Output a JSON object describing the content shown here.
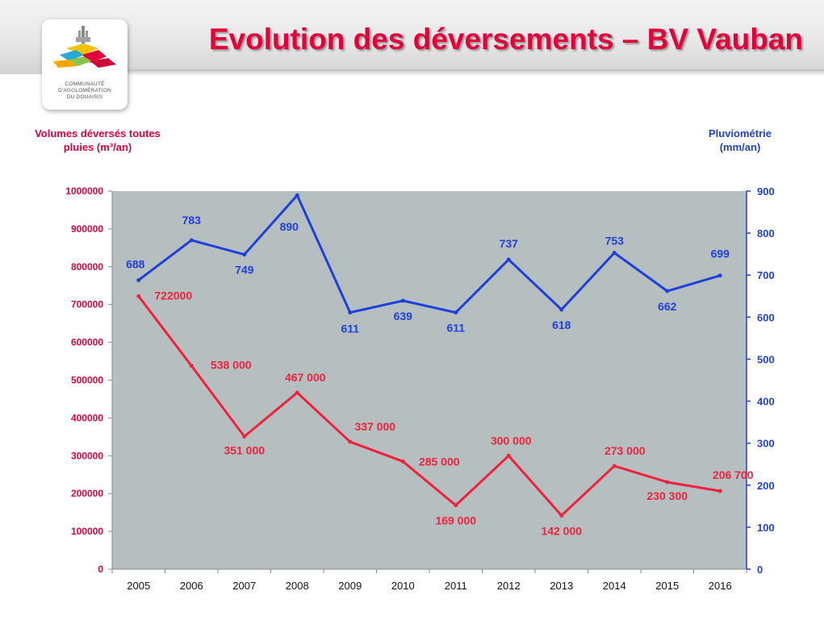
{
  "title": "Evolution des déversements – BV Vauban",
  "logo": {
    "lines": [
      "COMMUNAUTÉ",
      "D'AGGLOMÉRATION",
      "DU DOUAISIS"
    ]
  },
  "colors": {
    "title": "#e4003a",
    "volume_series": "#f0213c",
    "rain_series": "#1f3fdd",
    "plot_background": "#b6bfbf"
  },
  "chart_data": {
    "type": "line",
    "x": [
      2005,
      2006,
      2007,
      2008,
      2009,
      2010,
      2011,
      2012,
      2013,
      2014,
      2015,
      2016
    ],
    "y_left": {
      "label_line1": "Volumes déversés toutes",
      "label_line2": "pluies (m³/an)",
      "ylim": [
        0,
        1000000
      ],
      "ticks": [
        0,
        100000,
        200000,
        300000,
        400000,
        500000,
        600000,
        700000,
        800000,
        900000,
        1000000
      ]
    },
    "y_right": {
      "label_line1": "Pluviométrie",
      "label_line2": "(mm/an)",
      "ylim": [
        0,
        900
      ],
      "ticks": [
        0,
        100,
        200,
        300,
        400,
        500,
        600,
        700,
        800,
        900
      ]
    },
    "grid": false,
    "series": [
      {
        "axis": "left",
        "values": [
          722000,
          538000,
          351000,
          467000,
          337000,
          285000,
          169000,
          300000,
          142000,
          273000,
          230300,
          206700
        ],
        "labels": [
          "722000",
          "538 000",
          "351 000",
          "467 000",
          "337 000",
          "285 000",
          "169 000",
          "300 000",
          "142 000",
          "273 000",
          "230 300",
          "206 700"
        ]
      },
      {
        "axis": "right",
        "values": [
          688,
          783,
          749,
          890,
          611,
          639,
          611,
          737,
          618,
          753,
          662,
          699
        ],
        "labels": [
          "688",
          "783",
          "749",
          "890",
          "611",
          "639",
          "611",
          "737",
          "618",
          "753",
          "662",
          "699"
        ]
      }
    ]
  }
}
